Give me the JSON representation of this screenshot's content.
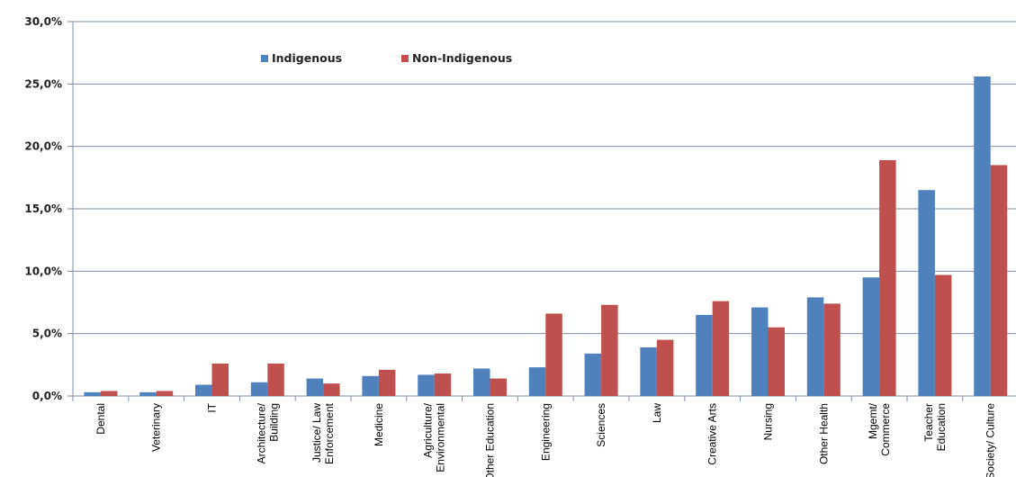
{
  "chart_data": {
    "type": "bar",
    "categories": [
      [
        "Dental"
      ],
      [
        "Veterinary"
      ],
      [
        "IT"
      ],
      [
        "Architecture/",
        "Building"
      ],
      [
        "Justice/ Law",
        "Enforcement"
      ],
      [
        "Medicine"
      ],
      [
        "Agriculture/",
        "Environmental"
      ],
      [
        "Other Education"
      ],
      [
        "Engineering"
      ],
      [
        "Sciences"
      ],
      [
        "Law"
      ],
      [
        "Creative Arts"
      ],
      [
        "Nursing"
      ],
      [
        "Other Health"
      ],
      [
        "Mgemt/",
        "Commerce"
      ],
      [
        "Teacher",
        "Education"
      ],
      [
        "Society/ Culture"
      ]
    ],
    "series": [
      {
        "name": "Indigenous",
        "color": "#4f81bd",
        "values": [
          0.3,
          0.3,
          0.9,
          1.1,
          1.4,
          1.6,
          1.7,
          2.2,
          2.3,
          3.4,
          3.9,
          6.5,
          7.1,
          7.9,
          9.5,
          16.5,
          25.6
        ]
      },
      {
        "name": "Non-Indigenous",
        "color": "#c0504d",
        "values": [
          0.4,
          0.4,
          2.6,
          2.6,
          1.0,
          2.1,
          1.8,
          1.4,
          6.6,
          7.3,
          4.5,
          7.6,
          5.5,
          7.4,
          18.9,
          9.7,
          18.5
        ]
      }
    ],
    "yticks": [
      "0,0%",
      "5,0%",
      "10,0%",
      "15,0%",
      "20,0%",
      "25,0%",
      "30,0%"
    ],
    "ylim": [
      0,
      30
    ],
    "grid": true,
    "legend_position": "top-left",
    "title": "",
    "xlabel": "",
    "ylabel": ""
  }
}
